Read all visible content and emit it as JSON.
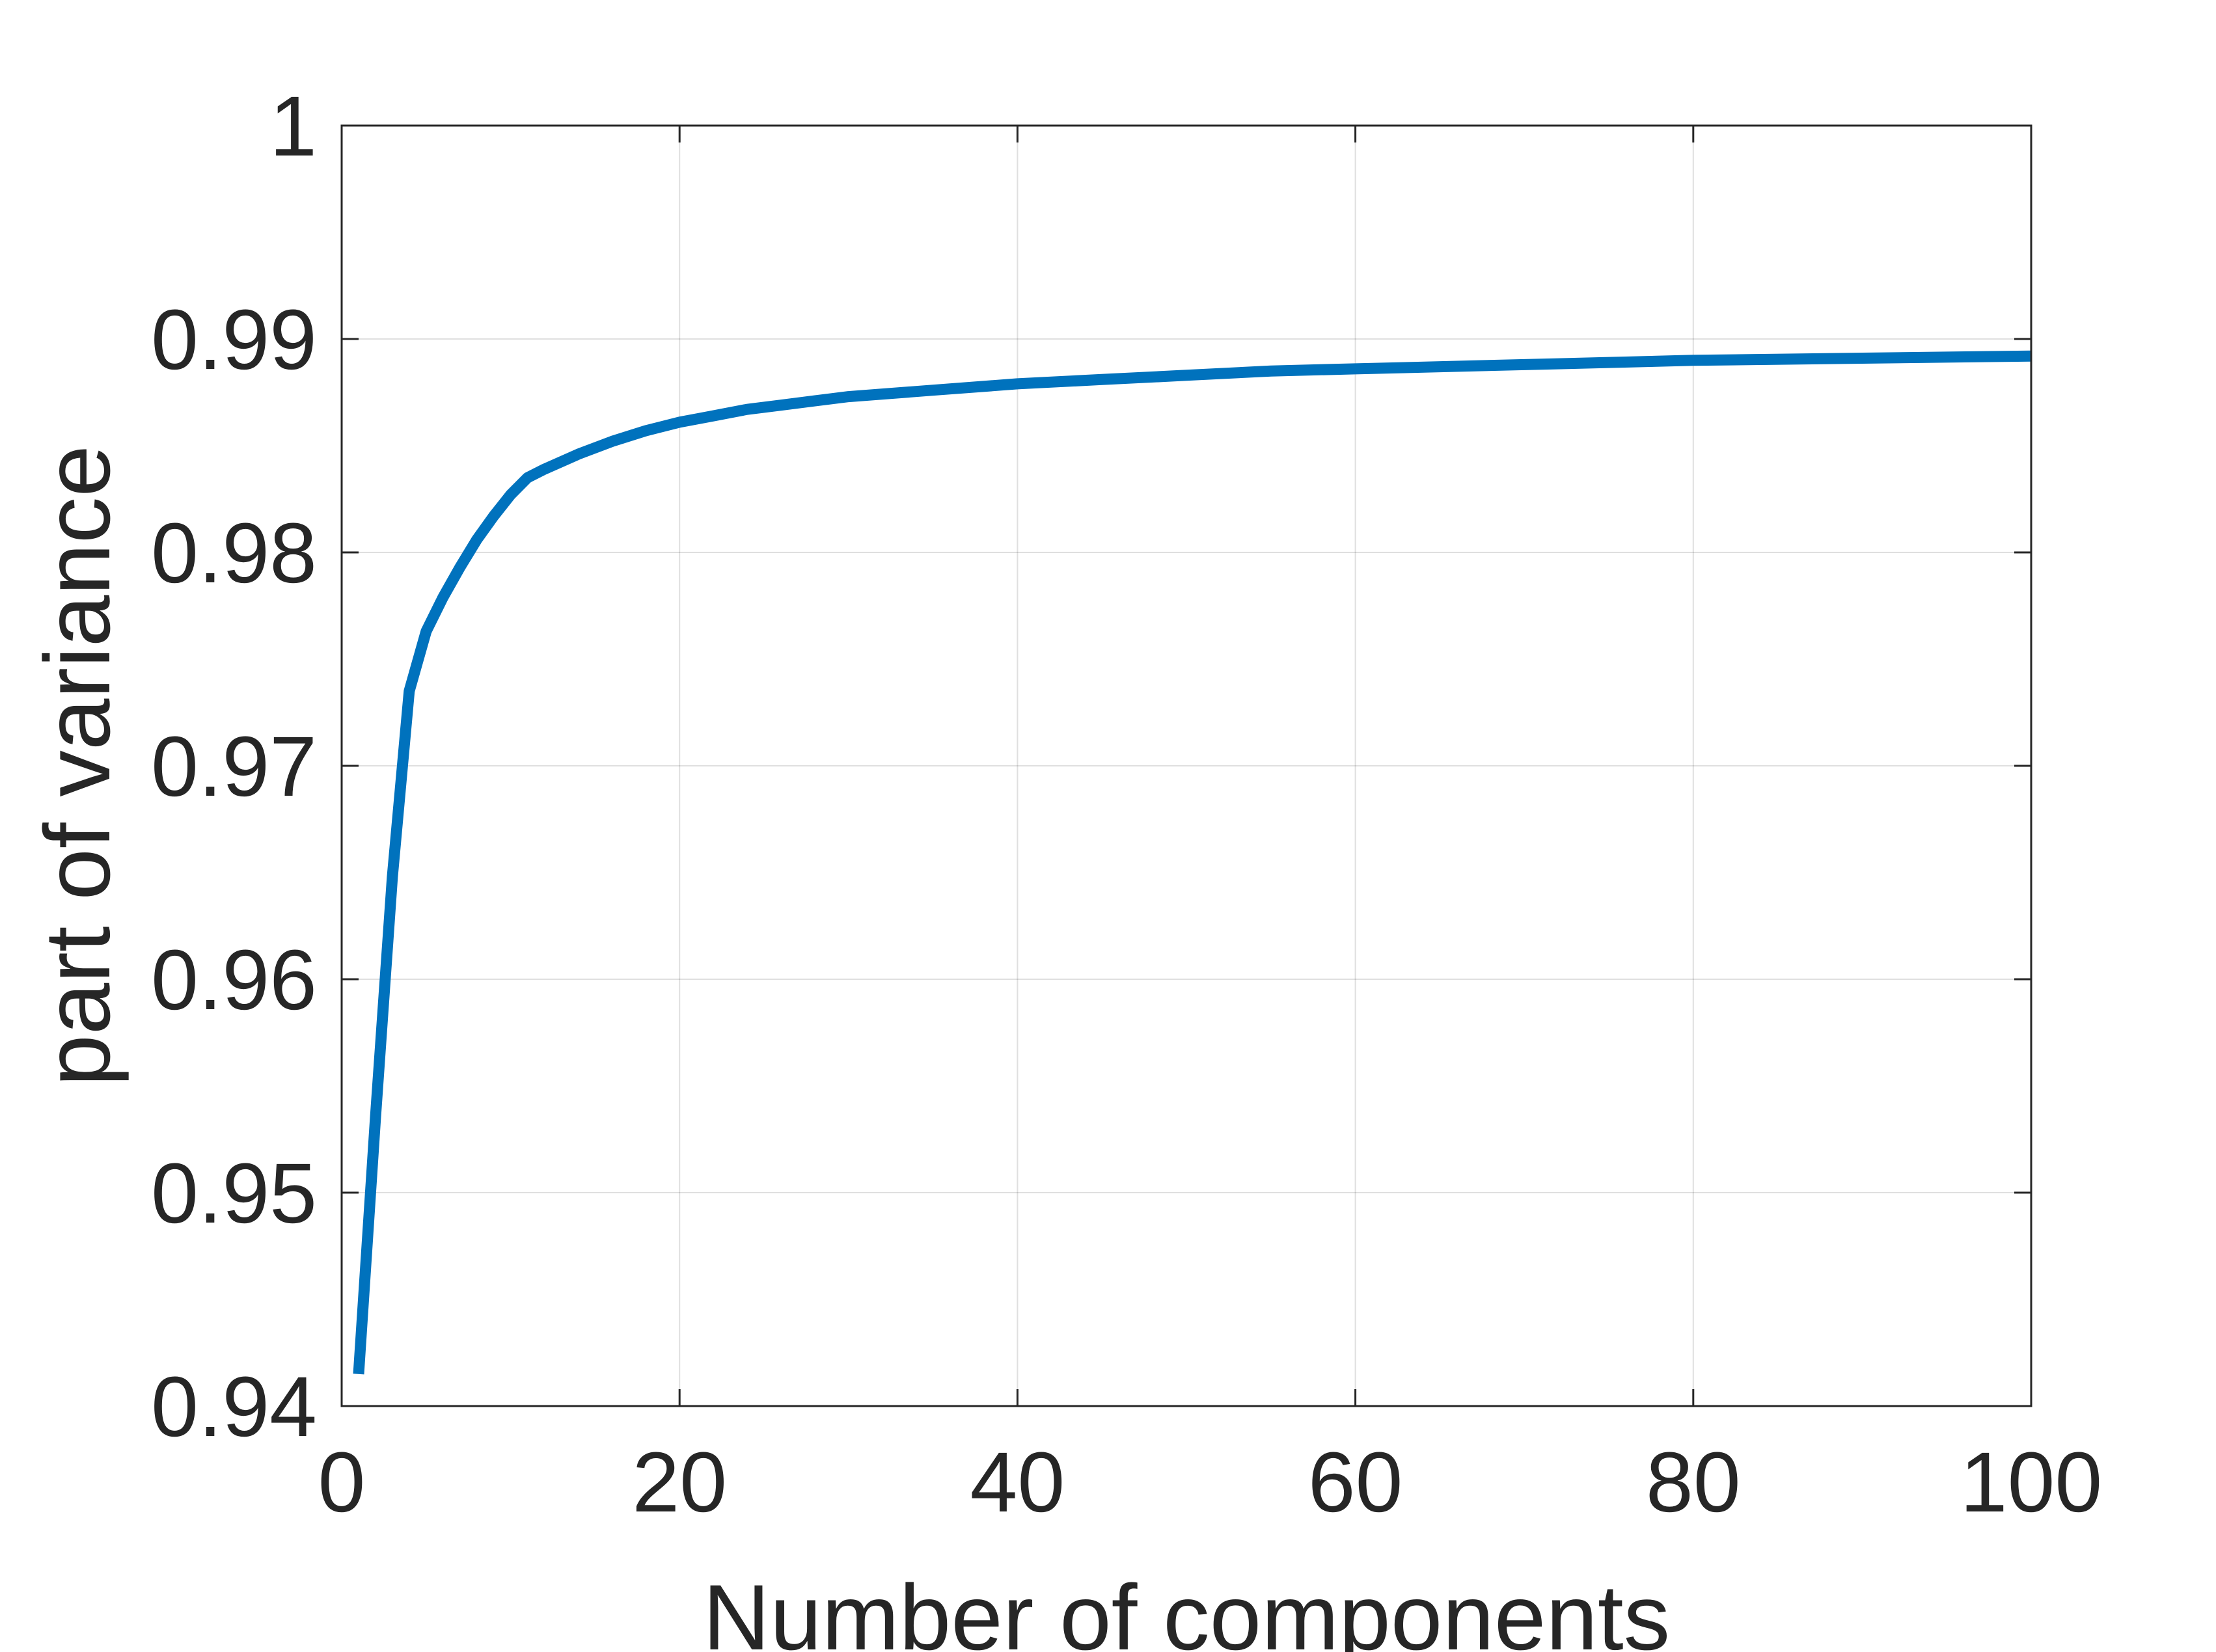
{
  "chart_data": {
    "type": "line",
    "title": "",
    "xlabel": "Number of components",
    "ylabel": "part of variance",
    "xlim": [
      0,
      100
    ],
    "ylim": [
      0.94,
      1
    ],
    "xticks": [
      0,
      20,
      40,
      60,
      80,
      100
    ],
    "xtick_labels": [
      "0",
      "20",
      "40",
      "60",
      "80",
      "100"
    ],
    "yticks": [
      0.94,
      0.95,
      0.96,
      0.97,
      0.98,
      0.99,
      1
    ],
    "ytick_labels": [
      "0.94",
      "0.95",
      "0.96",
      "0.97",
      "0.98",
      "0.99",
      "1"
    ],
    "grid": true,
    "series": [
      {
        "color": "#0072BD",
        "x": [
          1,
          2,
          3,
          4,
          5,
          6,
          7,
          8,
          9,
          10,
          11,
          12,
          14,
          16,
          18,
          20,
          22,
          24,
          26,
          28,
          30,
          35,
          40,
          45,
          50,
          55,
          60,
          70,
          80,
          90,
          100
        ],
        "y": [
          0.9415,
          0.9535,
          0.9648,
          0.9735,
          0.9763,
          0.9779,
          0.9793,
          0.9806,
          0.9817,
          0.9827,
          0.9835,
          0.9839,
          0.9846,
          0.9852,
          0.9857,
          0.9861,
          0.9864,
          0.9867,
          0.9869,
          0.9871,
          0.9873,
          0.9876,
          0.9879,
          0.9881,
          0.9883,
          0.9885,
          0.9886,
          0.9888,
          0.989,
          0.9891,
          0.9892
        ]
      }
    ]
  }
}
